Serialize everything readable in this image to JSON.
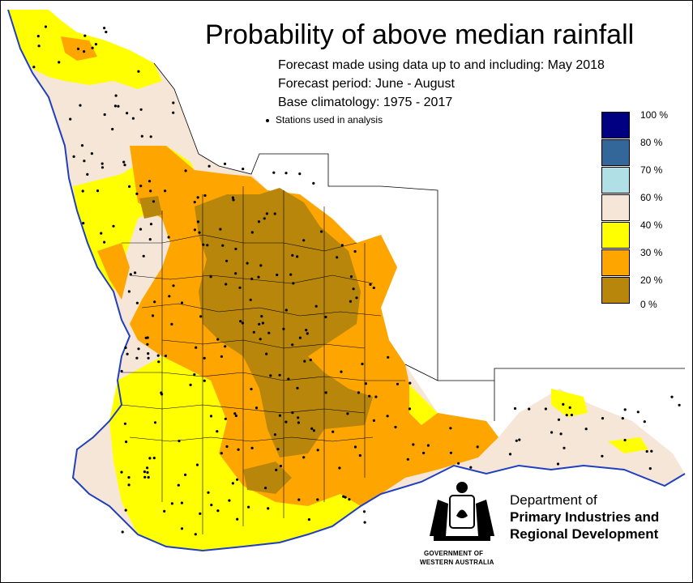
{
  "header": {
    "title": "Probability of above median rainfall",
    "forecast_made": "Forecast made using data up to and including: May 2018",
    "forecast_period": "Forecast period: June - August",
    "base_climatology": "Base climatology: 1975 - 2017",
    "stations_label": "Stations used in analysis"
  },
  "legend": {
    "items": [
      {
        "label": "100 %",
        "color": "#000080"
      },
      {
        "label": "80 %",
        "color": "#336699"
      },
      {
        "label": "70 %",
        "color": "#b0e0e6"
      },
      {
        "label": "60 %",
        "color": "#f5e6d8"
      },
      {
        "label": "40 %",
        "color": "#ffff00"
      },
      {
        "label": "30 %",
        "color": "#ffa500"
      },
      {
        "label": "20 %",
        "color": "#b8860b"
      },
      {
        "label": "0 %",
        "color": ""
      }
    ]
  },
  "map_colors": {
    "land_40_60": "#f5e6d8",
    "land_30_40": "#ffff00",
    "land_20_30": "#ffa500",
    "land_0_20": "#b8860b",
    "coastline": "#1f3fbf",
    "boundaries": "#000000"
  },
  "agency": {
    "line1": "Department of",
    "line2": "Primary Industries and",
    "line3": "Regional Development",
    "gov1": "GOVERNMENT OF",
    "gov2": "WESTERN AUSTRALIA"
  }
}
